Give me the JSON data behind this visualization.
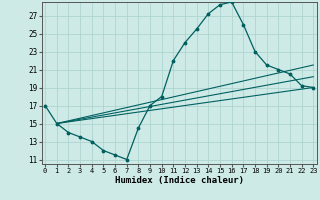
{
  "title": "",
  "xlabel": "Humidex (Indice chaleur)",
  "ylabel": "",
  "background_color": "#ceeae6",
  "line_color": "#006060",
  "grid_color": "#aed4d0",
  "x_values": [
    0,
    1,
    2,
    3,
    4,
    5,
    6,
    7,
    8,
    9,
    10,
    11,
    12,
    13,
    14,
    15,
    16,
    17,
    18,
    19,
    20,
    21,
    22,
    23
  ],
  "y_main": [
    17,
    15,
    14,
    13.5,
    13,
    12,
    11.5,
    11,
    14.5,
    17,
    18,
    22,
    24,
    25.5,
    27.2,
    28.2,
    28.5,
    26,
    23,
    21.5,
    21,
    20.5,
    19.2,
    19
  ],
  "regression_lines": [
    {
      "x_start": 1,
      "x_end": 23,
      "y_start": 15,
      "y_end": 19.0
    },
    {
      "x_start": 1,
      "x_end": 23,
      "y_start": 15,
      "y_end": 20.2
    },
    {
      "x_start": 1,
      "x_end": 23,
      "y_start": 15,
      "y_end": 21.5
    }
  ],
  "yticks": [
    11,
    13,
    15,
    17,
    19,
    21,
    23,
    25,
    27
  ],
  "xtick_labels": [
    "0",
    "1",
    "2",
    "3",
    "4",
    "5",
    "6",
    "7",
    "8",
    "9",
    "10",
    "11",
    "12",
    "13",
    "14",
    "15",
    "16",
    "17",
    "18",
    "19",
    "20",
    "21",
    "22",
    "23"
  ],
  "xtick_positions": [
    0,
    1,
    2,
    3,
    4,
    5,
    6,
    7,
    8,
    9,
    10,
    11,
    12,
    13,
    14,
    15,
    16,
    17,
    18,
    19,
    20,
    21,
    22,
    23
  ],
  "xlim": [
    -0.3,
    23.3
  ],
  "ylim": [
    10.5,
    28.5
  ]
}
